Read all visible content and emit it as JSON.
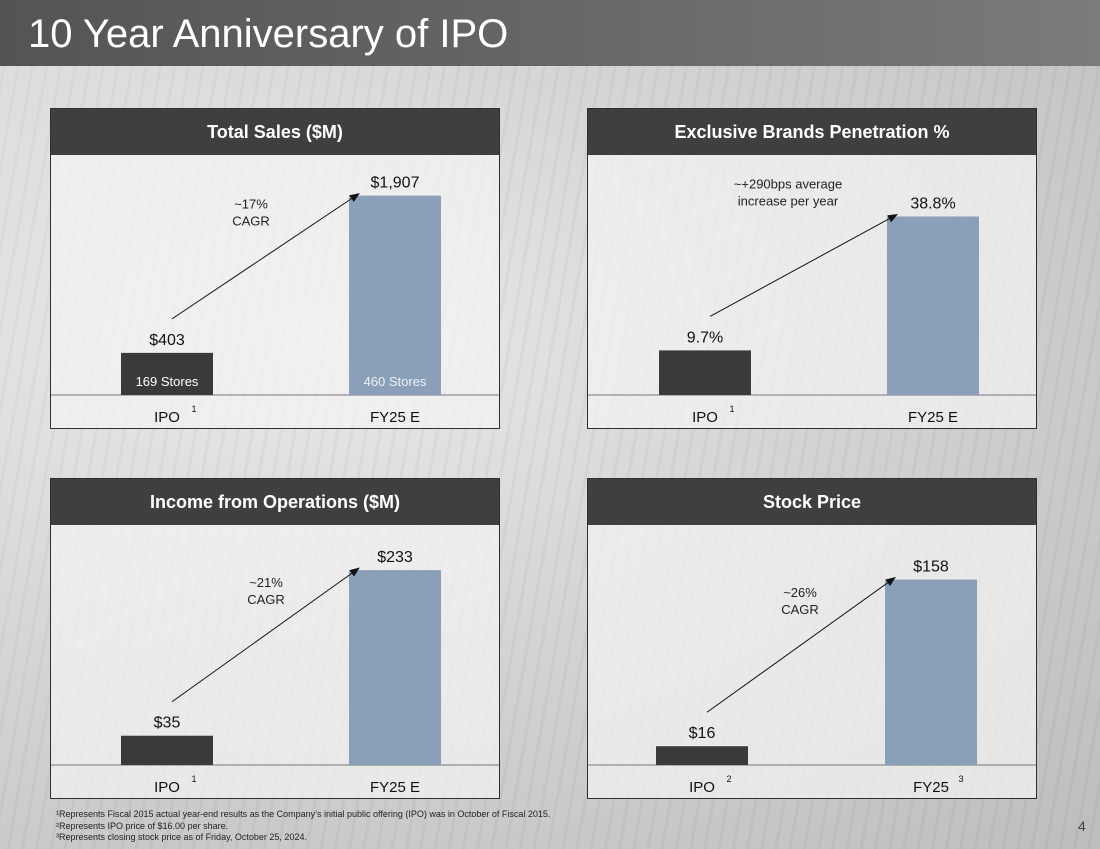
{
  "slide": {
    "title": "10 Year Anniversary of IPO",
    "page_number": "4"
  },
  "colors": {
    "ipo_bar": "#3a3a3a",
    "fy25_bar": "#8a9fb8",
    "header_bg": "#3f3f3f",
    "arrow": "#111111"
  },
  "footnotes": [
    "¹Represents Fiscal 2015 actual year-end results as the Company’s initial public offering (IPO) was in October of Fiscal 2015.",
    "²Represents IPO price of $16.00 per share.",
    "³Represents closing stock price as of Friday, October 25, 2024."
  ],
  "chart_data": [
    {
      "type": "bar",
      "title": "Total Sales ($M)",
      "categories": [
        "IPO",
        "FY25 E"
      ],
      "category_superscripts": [
        "1",
        ""
      ],
      "values": [
        403,
        1907
      ],
      "data_labels": [
        "$403",
        "$1,907"
      ],
      "bar_inner_labels": [
        "169 Stores",
        "460 Stores"
      ],
      "annotation": [
        "~17%",
        "CAGR"
      ],
      "ylim": [
        0,
        2200
      ]
    },
    {
      "type": "bar",
      "title": "Exclusive Brands Penetration %",
      "categories": [
        "IPO",
        "FY25 E"
      ],
      "category_superscripts": [
        "1",
        ""
      ],
      "values": [
        9.7,
        38.8
      ],
      "data_labels": [
        "9.7%",
        "38.8%"
      ],
      "bar_inner_labels": [
        "",
        ""
      ],
      "annotation": [
        "~+290bps average",
        "increase per year"
      ],
      "ylim": [
        0,
        50
      ]
    },
    {
      "type": "bar",
      "title": "Income from Operations ($M)",
      "categories": [
        "IPO",
        "FY25 E"
      ],
      "category_superscripts": [
        "1",
        ""
      ],
      "values": [
        35,
        233
      ],
      "data_labels": [
        "$35",
        "$233"
      ],
      "bar_inner_labels": [
        "",
        ""
      ],
      "annotation": [
        "~21%",
        "CAGR"
      ],
      "ylim": [
        0,
        275
      ]
    },
    {
      "type": "bar",
      "title": "Stock Price",
      "categories": [
        "IPO",
        "FY25"
      ],
      "category_superscripts": [
        "2",
        "3"
      ],
      "values": [
        16,
        158
      ],
      "data_labels": [
        "$16",
        "$158"
      ],
      "bar_inner_labels": [
        "",
        ""
      ],
      "annotation": [
        "~26%",
        "CAGR"
      ],
      "ylim": [
        0,
        196
      ]
    }
  ]
}
